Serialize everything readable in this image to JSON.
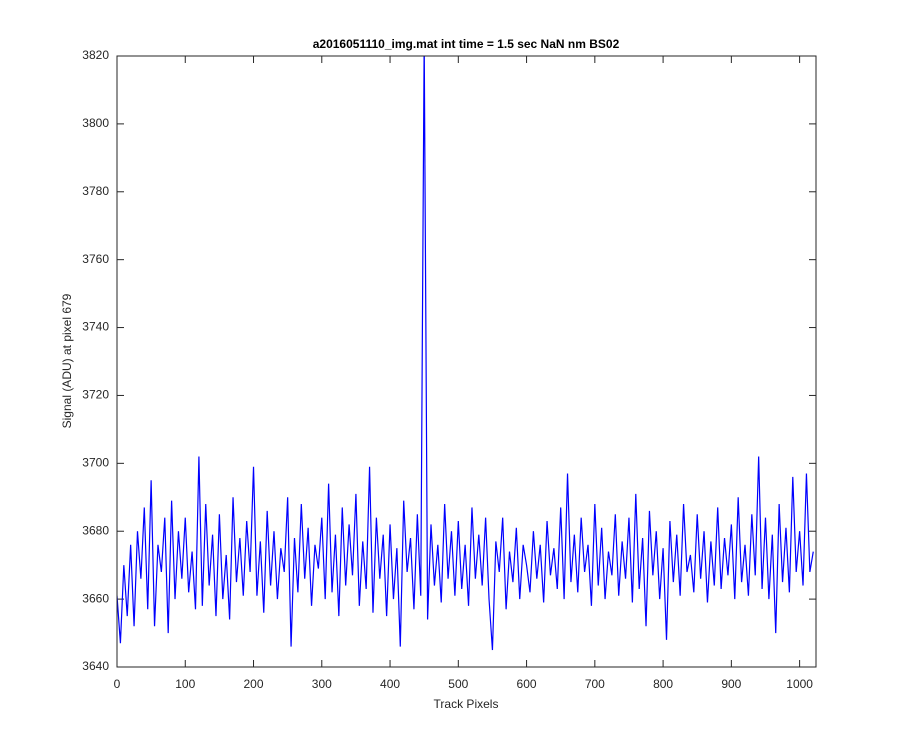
{
  "chart_data": {
    "type": "line",
    "title": "a2016051110_img.mat int time = 1.5 sec  NaN nm BS02",
    "x_label": "Track Pixels",
    "y_label": "Signal (ADU) at pixel 679",
    "xlim": [
      0,
      1024
    ],
    "xticks": [
      0,
      100,
      200,
      300,
      400,
      500,
      600,
      700,
      800,
      900,
      1000
    ],
    "ylim": [
      3640,
      3820
    ],
    "yticks": [
      3640,
      3660,
      3680,
      3700,
      3720,
      3740,
      3760,
      3780,
      3800,
      3820
    ],
    "grid": false,
    "x": [
      0,
      5,
      10,
      15,
      20,
      25,
      30,
      35,
      40,
      45,
      50,
      55,
      60,
      65,
      70,
      75,
      80,
      85,
      90,
      95,
      100,
      105,
      110,
      115,
      120,
      125,
      130,
      135,
      140,
      145,
      150,
      155,
      160,
      165,
      170,
      175,
      180,
      185,
      190,
      195,
      200,
      205,
      210,
      215,
      220,
      225,
      230,
      235,
      240,
      245,
      250,
      255,
      260,
      265,
      270,
      275,
      280,
      285,
      290,
      295,
      300,
      305,
      310,
      315,
      320,
      325,
      330,
      335,
      340,
      345,
      350,
      355,
      360,
      365,
      370,
      375,
      380,
      385,
      390,
      395,
      400,
      405,
      410,
      415,
      420,
      425,
      430,
      435,
      440,
      445,
      450,
      455,
      460,
      465,
      470,
      475,
      480,
      485,
      490,
      495,
      500,
      505,
      510,
      515,
      520,
      525,
      530,
      535,
      540,
      545,
      550,
      555,
      560,
      565,
      570,
      575,
      580,
      585,
      590,
      595,
      600,
      605,
      610,
      615,
      620,
      625,
      630,
      635,
      640,
      645,
      650,
      655,
      660,
      665,
      670,
      675,
      680,
      685,
      690,
      695,
      700,
      705,
      710,
      715,
      720,
      725,
      730,
      735,
      740,
      745,
      750,
      755,
      760,
      765,
      770,
      775,
      780,
      785,
      790,
      795,
      800,
      805,
      810,
      815,
      820,
      825,
      830,
      835,
      840,
      845,
      850,
      855,
      860,
      865,
      870,
      875,
      880,
      885,
      890,
      895,
      900,
      905,
      910,
      915,
      920,
      925,
      930,
      935,
      940,
      945,
      950,
      955,
      960,
      965,
      970,
      975,
      980,
      985,
      990,
      995,
      1000,
      1005,
      1010,
      1015,
      1020
    ],
    "series": [
      {
        "color": "#0000ff",
        "values": [
          3661,
          3647,
          3670,
          3655,
          3676,
          3652,
          3680,
          3666,
          3687,
          3657,
          3695,
          3652,
          3676,
          3668,
          3684,
          3650,
          3689,
          3660,
          3680,
          3666,
          3684,
          3662,
          3674,
          3657,
          3702,
          3658,
          3688,
          3664,
          3679,
          3655,
          3685,
          3660,
          3673,
          3654,
          3690,
          3665,
          3678,
          3661,
          3683,
          3668,
          3699,
          3661,
          3677,
          3656,
          3686,
          3664,
          3680,
          3660,
          3675,
          3668,
          3690,
          3646,
          3678,
          3662,
          3688,
          3666,
          3681,
          3658,
          3676,
          3669,
          3684,
          3660,
          3694,
          3662,
          3679,
          3655,
          3687,
          3664,
          3682,
          3667,
          3691,
          3658,
          3677,
          3663,
          3699,
          3656,
          3684,
          3666,
          3679,
          3655,
          3682,
          3660,
          3675,
          3646,
          3689,
          3668,
          3678,
          3657,
          3685,
          3661,
          3825,
          3654,
          3682,
          3664,
          3676,
          3659,
          3688,
          3666,
          3680,
          3661,
          3683,
          3663,
          3676,
          3658,
          3687,
          3666,
          3679,
          3664,
          3684,
          3660,
          3645,
          3677,
          3668,
          3684,
          3657,
          3674,
          3665,
          3681,
          3660,
          3676,
          3670,
          3662,
          3680,
          3666,
          3676,
          3659,
          3683,
          3667,
          3675,
          3663,
          3687,
          3660,
          3697,
          3665,
          3679,
          3662,
          3684,
          3668,
          3676,
          3658,
          3688,
          3664,
          3681,
          3660,
          3674,
          3667,
          3685,
          3661,
          3677,
          3666,
          3684,
          3659,
          3691,
          3663,
          3678,
          3652,
          3686,
          3667,
          3680,
          3660,
          3675,
          3648,
          3683,
          3665,
          3679,
          3661,
          3688,
          3668,
          3673,
          3662,
          3685,
          3666,
          3680,
          3659,
          3677,
          3664,
          3687,
          3663,
          3678,
          3667,
          3682,
          3660,
          3690,
          3665,
          3676,
          3661,
          3685,
          3667,
          3702,
          3663,
          3684,
          3660,
          3679,
          3650,
          3688,
          3665,
          3681,
          3662,
          3696,
          3668,
          3680,
          3664,
          3697,
          3668,
          3674
        ]
      }
    ]
  }
}
